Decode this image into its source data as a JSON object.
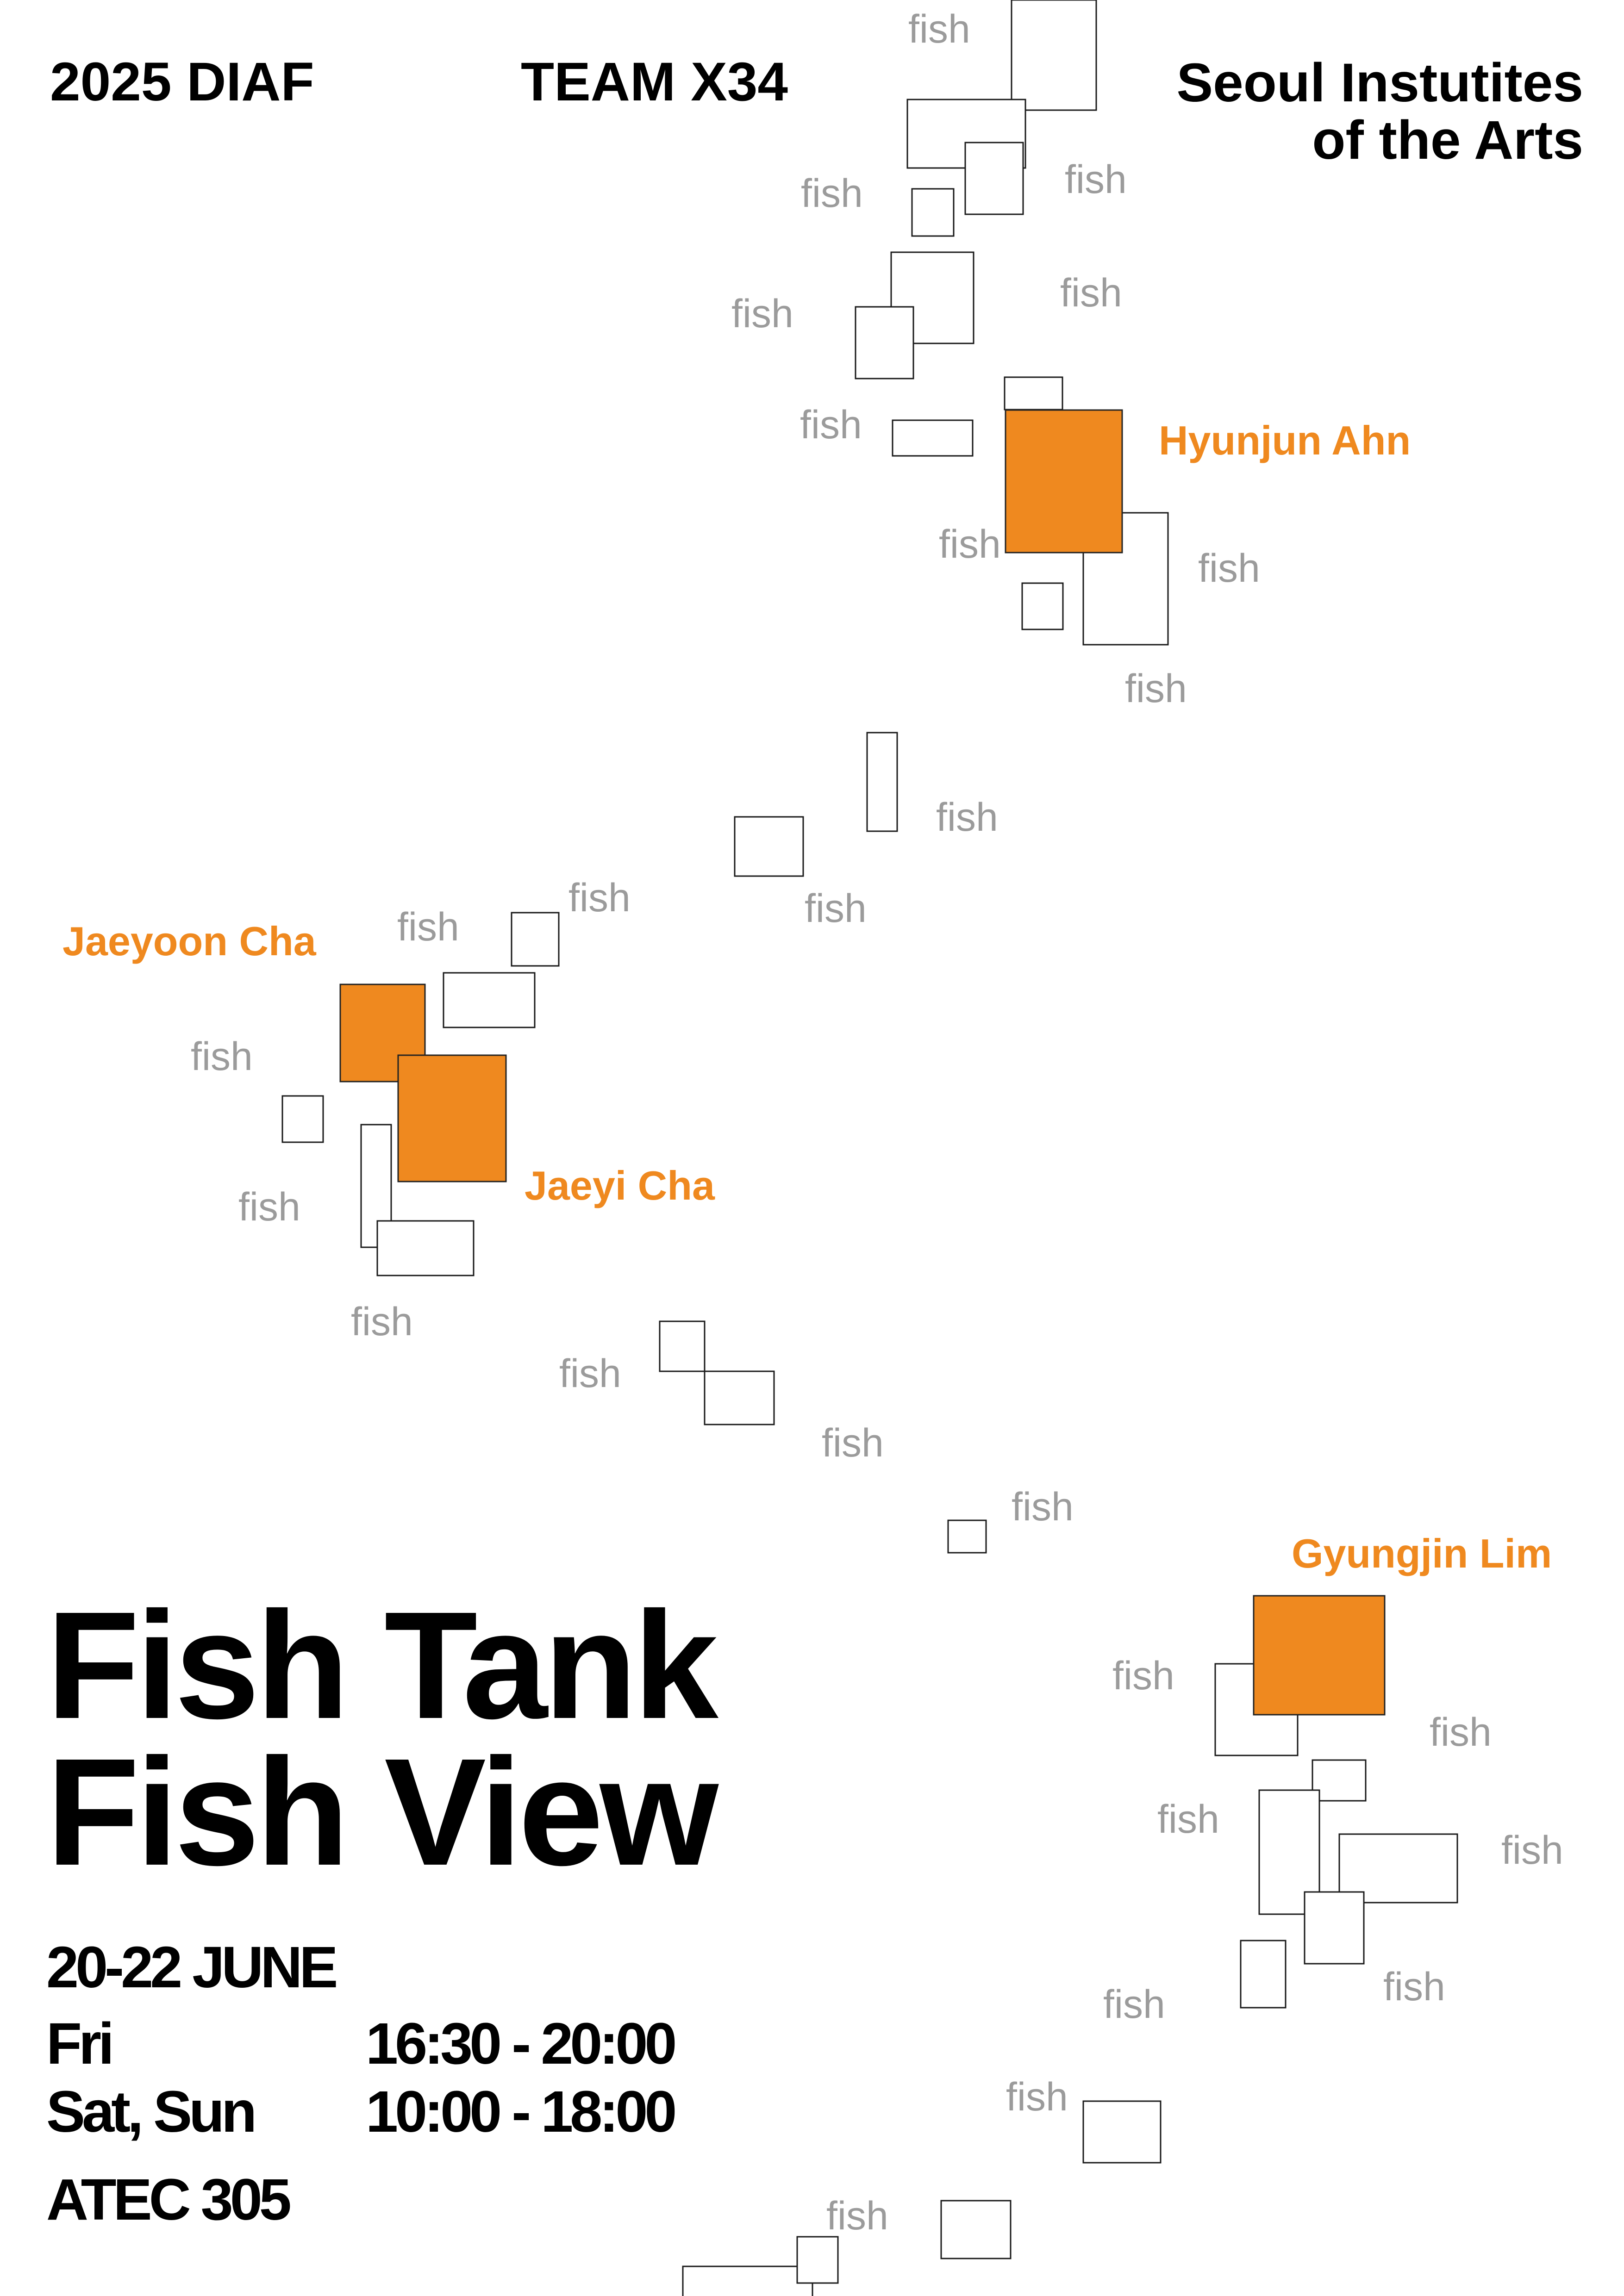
{
  "header": {
    "festival": "2025 DIAF",
    "team": "TEAM X34",
    "institution_line1": "Seoul Instutites",
    "institution_line2": "of the Arts"
  },
  "artists": [
    "Hyunjun Ahn",
    "Jaeyoon Cha",
    "Jaeyi Cha",
    "Gyungjin Lim"
  ],
  "fish_word": "fish",
  "title": {
    "line1": "Fish Tank",
    "line2": "Fish View"
  },
  "event": {
    "dates": "20-22 JUNE",
    "schedule": [
      {
        "day": "Fri",
        "time": "16:30 - 20:00"
      },
      {
        "day": "Sat, Sun",
        "time": "10:00 - 18:00"
      }
    ],
    "venue": "ATEC 305"
  },
  "colors": {
    "accent": "#ef891f",
    "fish_label": "#9b9b9b",
    "text": "#000000",
    "background": "#ffffff"
  }
}
